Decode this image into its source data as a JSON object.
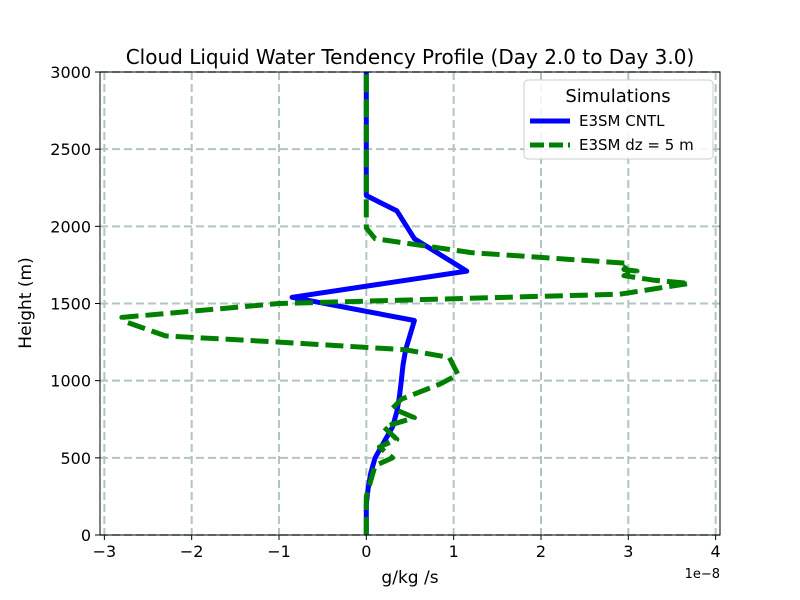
{
  "chart_data": {
    "type": "line",
    "title": "Cloud Liquid Water Tendency Profile (Day 2.0 to Day 3.0)",
    "xlabel": "g/kg /s",
    "ylabel": "Height (m)",
    "x_offset_label": "1e−8",
    "xlim": [
      -3.05,
      4.05
    ],
    "ylim": [
      0,
      3000
    ],
    "xticks": [
      -3,
      -2,
      -1,
      0,
      1,
      2,
      3,
      4
    ],
    "xtick_labels": [
      "−3",
      "−2",
      "−1",
      "0",
      "1",
      "2",
      "3",
      "4"
    ],
    "yticks": [
      0,
      500,
      1000,
      1500,
      2000,
      2500,
      3000
    ],
    "ytick_labels": [
      "0",
      "500",
      "1000",
      "1500",
      "2000",
      "2500",
      "3000"
    ],
    "grid": true,
    "legend": {
      "title": "Simulations",
      "position": "top-right"
    },
    "series": [
      {
        "name": "E3SM CNTL",
        "color": "#0000ff",
        "style": "solid",
        "x": [
          0,
          0,
          0,
          0.02,
          0.05,
          0.1,
          0.2,
          0.3,
          0.35,
          0.38,
          0.4,
          0.42,
          0.45,
          0.55,
          -0.85,
          1.15,
          0.55,
          0.35,
          0.0,
          0.0,
          0.0
        ],
        "y": [
          0,
          100,
          200,
          300,
          400,
          500,
          600,
          700,
          800,
          900,
          1000,
          1100,
          1200,
          1390,
          1540,
          1710,
          1920,
          2100,
          2200,
          2600,
          3000
        ]
      },
      {
        "name": "E3SM dz = 5 m",
        "color": "#008000",
        "style": "dashed",
        "x": [
          0,
          0,
          0,
          0.05,
          0.1,
          0.3,
          0.15,
          0.35,
          0.2,
          0.55,
          0.3,
          0.4,
          0.85,
          1.05,
          0.95,
          0.45,
          -1.0,
          -2.3,
          -2.75,
          -2.8,
          -1.0,
          2.9,
          3.7,
          3.3,
          2.95,
          3.1,
          2.95,
          3.0,
          1.2,
          0.1,
          0.0,
          0.0,
          0.0
        ],
        "y": [
          0,
          150,
          250,
          350,
          450,
          500,
          570,
          620,
          700,
          760,
          820,
          880,
          980,
          1040,
          1150,
          1200,
          1250,
          1290,
          1380,
          1410,
          1500,
          1560,
          1630,
          1650,
          1680,
          1710,
          1720,
          1760,
          1830,
          1920,
          1990,
          2200,
          3000
        ]
      }
    ]
  }
}
